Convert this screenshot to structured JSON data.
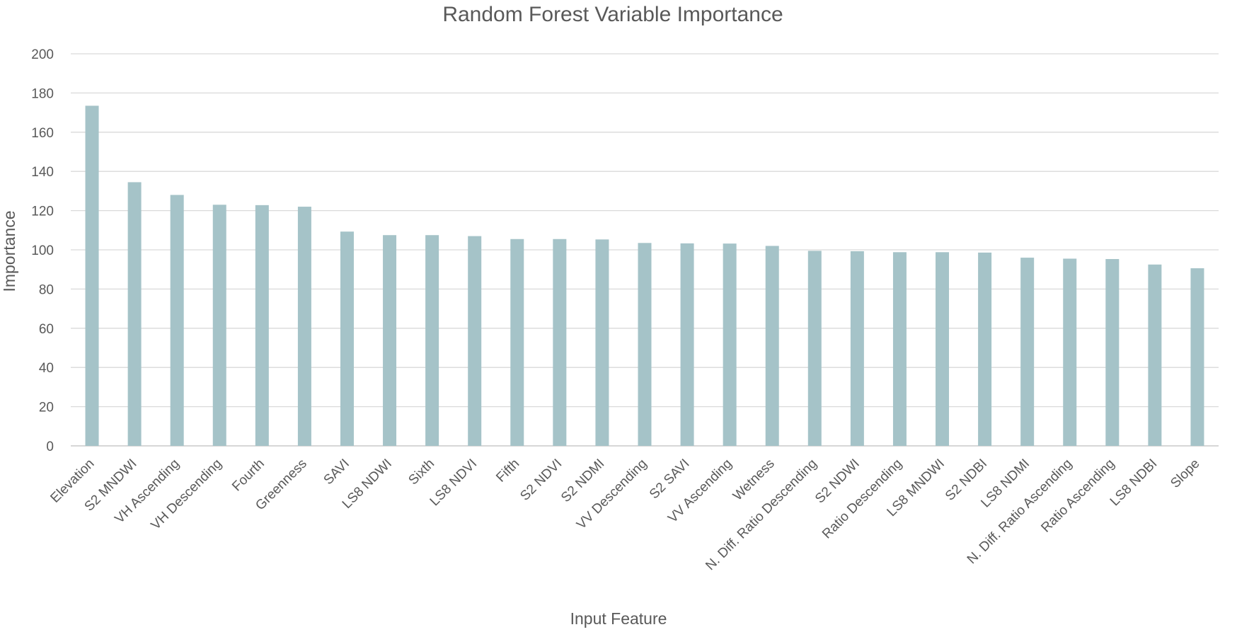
{
  "chart_data": {
    "type": "bar",
    "title": "Random Forest Variable Importance",
    "xlabel": "Input Feature",
    "ylabel": "Importance",
    "ylim": [
      0,
      200
    ],
    "yticks": [
      0,
      20,
      40,
      60,
      80,
      100,
      120,
      140,
      160,
      180,
      200
    ],
    "grid": true,
    "legend": "none",
    "bar_color": "#a5c3c8",
    "categories": [
      "Elevation",
      "S2 MNDWI",
      "VH Ascending",
      "VH Descending",
      "Fourth",
      "Greenness",
      "SAVI",
      "LS8 NDWI",
      "Sixth",
      "LS8 NDVI",
      "Fifth",
      "S2 NDVI",
      "S2 NDMI",
      "VV Descending",
      "S2 SAVI",
      "VV Ascending",
      "Wetness",
      "N. Diff. Ratio Descending",
      "S2 NDWI",
      "Ratio Descending",
      "LS8 MNDWI",
      "S2 NDBI",
      "LS8 NDMI",
      "N. Diff. Ratio Ascending",
      "Ratio Ascending",
      "LS8 NDBI",
      "Slope"
    ],
    "values": [
      173.5,
      134.5,
      128,
      123,
      122.8,
      122,
      109.3,
      107.5,
      107.5,
      107,
      105.5,
      105.5,
      105.3,
      103.5,
      103.3,
      103.2,
      102,
      99.5,
      99.3,
      98.8,
      98.8,
      98.6,
      96,
      95.5,
      95.3,
      92.5,
      90.6
    ]
  }
}
